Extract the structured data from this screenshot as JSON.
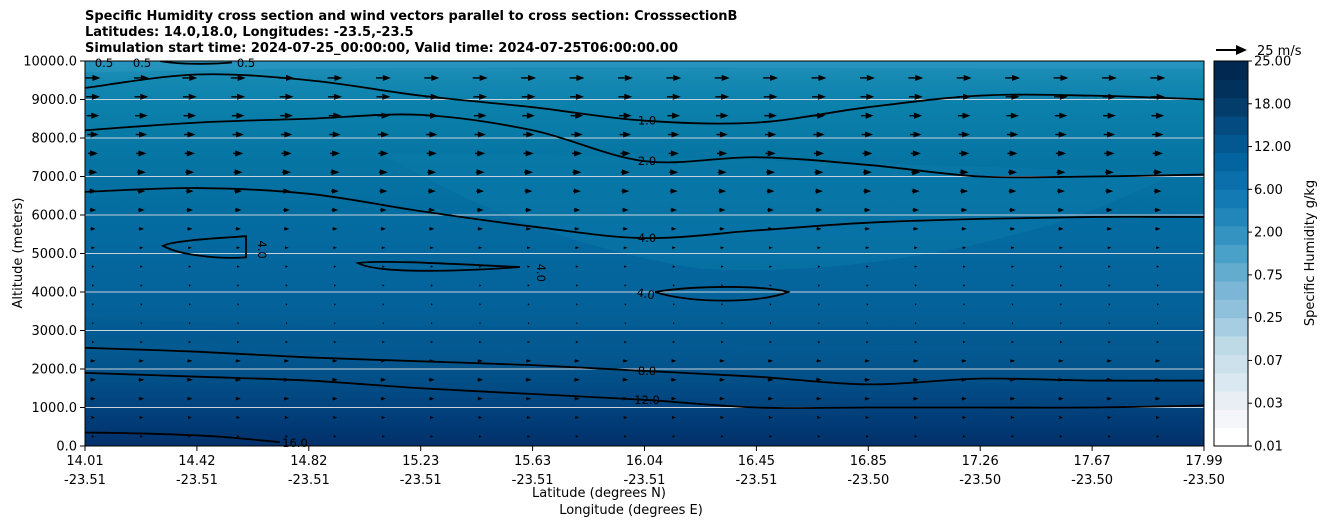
{
  "title_lines": [
    "Specific Humidity cross section and wind vectors parallel to cross section: CrosssectionB",
    "Latitudes: 14.0,18.0, Longitudes: -23.5,-23.5",
    "Simulation start time: 2024-07-25_00:00:00, Valid time: 2024-07-25T06:00:00.00"
  ],
  "chart_data": {
    "type": "heatmap",
    "title": "Specific Humidity cross section and wind vectors parallel to cross section: CrosssectionB",
    "ylabel": "Altitude (meters)",
    "xlabel_lat": "Latitude (degrees N)",
    "xlabel_lon": "Longitude (degrees E)",
    "ylim": [
      0,
      10000
    ],
    "y_ticks": [
      "0.0",
      "1000.0",
      "2000.0",
      "3000.0",
      "4000.0",
      "5000.0",
      "6000.0",
      "7000.0",
      "8000.0",
      "9000.0",
      "10000.0"
    ],
    "x_ticks_lat": [
      "14.01",
      "14.42",
      "14.82",
      "15.23",
      "15.63",
      "16.04",
      "16.45",
      "16.85",
      "17.26",
      "17.67",
      "17.99"
    ],
    "x_ticks_lon": [
      "-23.51",
      "-23.51",
      "-23.51",
      "-23.51",
      "-23.51",
      "-23.51",
      "-23.51",
      "-23.50",
      "-23.50",
      "-23.50",
      "-23.50"
    ],
    "horizontal_grid": true,
    "colorbar": {
      "label": "Specific Humidity g/kg",
      "levels": [
        0.01,
        0.02,
        0.03,
        0.05,
        0.07,
        0.1,
        0.25,
        0.5,
        0.75,
        1,
        1.5,
        2,
        3,
        4,
        6,
        8,
        10,
        12,
        15,
        18,
        20,
        25
      ],
      "tick_labels": [
        "0.01",
        "0.03",
        "0.07",
        "0.25",
        "0.75",
        "2.00",
        "6.00",
        "12.00",
        "18.00",
        "25.00"
      ],
      "colormap": "PuBu"
    },
    "contours": [
      {
        "level": "0.5",
        "label_positions": [
          "left-top",
          "near-14.4"
        ]
      },
      {
        "level": "1.0",
        "altitude_approx_m": [
          9300,
          9650,
          9500,
          9100,
          8800,
          8450,
          8400,
          8800,
          9100,
          9100,
          9000
        ]
      },
      {
        "level": "2.0",
        "altitude_approx_m": [
          8200,
          8400,
          8500,
          8600,
          8200,
          7400,
          7500,
          7300,
          7000,
          7000,
          7050
        ]
      },
      {
        "level": "4.0",
        "altitude_approx_m": [
          6600,
          6700,
          6550,
          6100,
          5700,
          5400,
          5600,
          5800,
          5900,
          5950,
          5950
        ]
      },
      {
        "level": "4.0",
        "feature": "closed contours near 14.5, 15.4 and 16.3 around 4000-5000 m"
      },
      {
        "level": "8.0",
        "altitude_approx_m": [
          2550,
          2450,
          2300,
          2200,
          2100,
          1950,
          1800,
          1600,
          1750,
          1700,
          1700
        ]
      },
      {
        "level": "12.0",
        "altitude_approx_m": [
          1900,
          1800,
          1700,
          1500,
          1350,
          1200,
          1000,
          1000,
          1000,
          1000,
          1050
        ]
      },
      {
        "level": "16.0",
        "altitude_approx_m": [
          350,
          320,
          250,
          100
        ]
      }
    ],
    "wind_vectors": {
      "direction": "parallel to cross section (toward +x)",
      "reference": "25 m/s",
      "reference_speed": 25,
      "speed_profile_ms": [
        {
          "altitude": 0,
          "speed": 2
        },
        {
          "altitude": 1000,
          "speed": 4
        },
        {
          "altitude": 2000,
          "speed": 5
        },
        {
          "altitude": 3000,
          "speed": 1
        },
        {
          "altitude": 4500,
          "speed": 2
        },
        {
          "altitude": 6000,
          "speed": 5
        },
        {
          "altitude": 7500,
          "speed": 8
        },
        {
          "altitude": 8500,
          "speed": 10
        },
        {
          "altitude": 9500,
          "speed": 12
        }
      ]
    }
  },
  "reference_vector_label": "25 m/s"
}
